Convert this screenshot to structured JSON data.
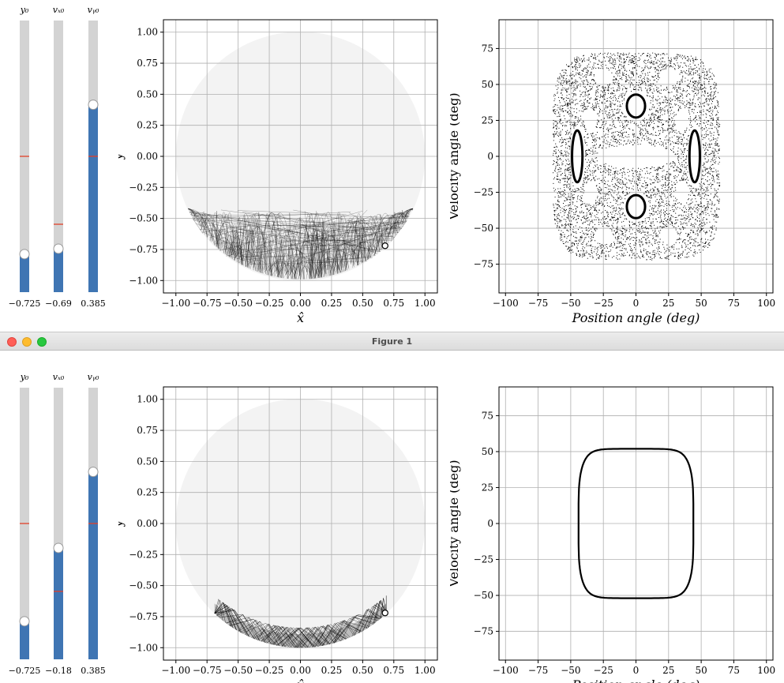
{
  "window": {
    "title": "Figure 1"
  },
  "panels": [
    {
      "id": "top",
      "sliders": [
        {
          "label": "y₀",
          "value_text": "−0.725",
          "fill": 0.14,
          "marker": 0.5
        },
        {
          "label": "vₓ₀",
          "value_text": "−0.69",
          "fill": 0.16,
          "marker": 0.25
        },
        {
          "label": "vᵧ₀",
          "value_text": "0.385",
          "fill": 0.69,
          "marker": 0.5
        }
      ]
    },
    {
      "id": "bottom",
      "sliders": [
        {
          "label": "y₀",
          "value_text": "−0.725",
          "fill": 0.14,
          "marker": 0.5
        },
        {
          "label": "vₓ₀",
          "value_text": "−0.18",
          "fill": 0.41,
          "marker": 0.25
        },
        {
          "label": "vᵧ₀",
          "value_text": "0.385",
          "fill": 0.69,
          "marker": 0.5
        }
      ]
    }
  ],
  "chart_data": [
    {
      "type": "line",
      "xlabel": "x̂",
      "ylabel": "ŷ",
      "xlim": [
        -1.1,
        1.1
      ],
      "ylim": [
        -1.1,
        1.1
      ],
      "xticks": [
        "−1.00",
        "−0.75",
        "−0.50",
        "−0.25",
        "0.00",
        "0.25",
        "0.50",
        "0.75",
        "1.00"
      ],
      "yticks": [
        "1.00",
        "0.75",
        "0.50",
        "0.25",
        "0.00",
        "−0.25",
        "−0.50",
        "−0.75",
        "−1.00"
      ],
      "grid": true,
      "region": {
        "kind": "circle",
        "radius": 1.0
      },
      "trajectory": {
        "kind": "chaotic",
        "floor_y": -0.43
      },
      "current_point": {
        "x": 0.68,
        "y": -0.72
      }
    },
    {
      "type": "scatter",
      "xlabel": "Position angle (deg)",
      "ylabel": "Velocity angle (deg)",
      "xlim": [
        -105,
        105
      ],
      "ylim": [
        -95,
        95
      ],
      "xticks": [
        "−100",
        "−75",
        "−50",
        "−25",
        "0",
        "25",
        "50",
        "75",
        "100"
      ],
      "yticks": [
        "75",
        "50",
        "25",
        "0",
        "−25",
        "−50",
        "−75"
      ],
      "grid": true,
      "pattern": {
        "kind": "chaotic",
        "x_extent": 64,
        "y_extent": 72
      }
    },
    {
      "type": "line",
      "xlabel": "x̂",
      "ylabel": "ŷ",
      "xlim": [
        -1.1,
        1.1
      ],
      "ylim": [
        -1.1,
        1.1
      ],
      "xticks": [
        "−1.00",
        "−0.75",
        "−0.50",
        "−0.25",
        "0.00",
        "0.25",
        "0.50",
        "0.75",
        "1.00"
      ],
      "yticks": [
        "1.00",
        "0.75",
        "0.50",
        "0.25",
        "0.00",
        "−0.25",
        "−0.50",
        "−0.75",
        "−1.00"
      ],
      "grid": true,
      "region": {
        "kind": "circle",
        "radius": 1.0
      },
      "trajectory": {
        "kind": "regular",
        "inner_radius": 0.94,
        "outer_radius": 1.0,
        "x_extent": 0.69
      },
      "current_point": {
        "x": 0.68,
        "y": -0.72
      }
    },
    {
      "type": "scatter",
      "xlabel": "Position angle (deg)",
      "ylabel": "Velocity angle (deg)",
      "xlim": [
        -105,
        105
      ],
      "ylim": [
        -95,
        95
      ],
      "xticks": [
        "−100",
        "−75",
        "−50",
        "−25",
        "0",
        "25",
        "50",
        "75",
        "100"
      ],
      "yticks": [
        "75",
        "50",
        "25",
        "0",
        "−25",
        "−50",
        "−75"
      ],
      "grid": true,
      "pattern": {
        "kind": "closed-curve",
        "x_extent": 44,
        "y_extent": 53
      }
    }
  ]
}
